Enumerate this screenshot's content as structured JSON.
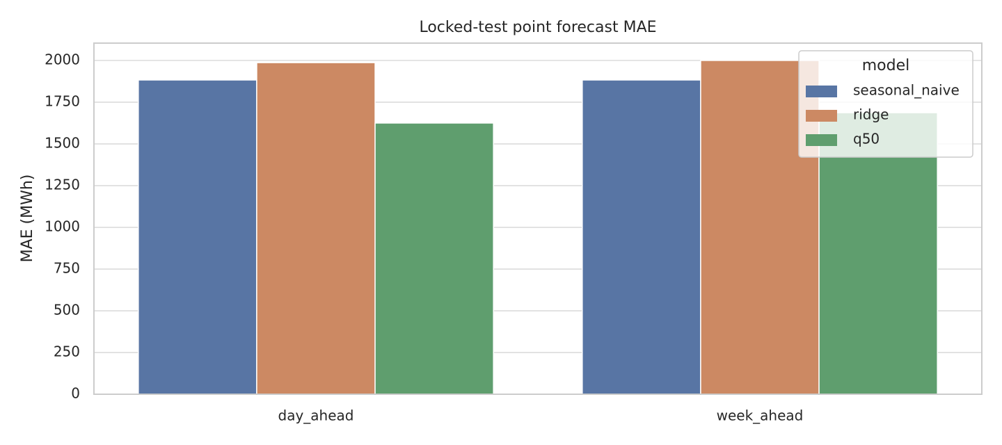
{
  "chart_data": {
    "type": "bar",
    "title": "Locked-test point forecast MAE",
    "y_label": "MAE (MWh)",
    "categories": [
      "day_ahead",
      "week_ahead"
    ],
    "series": [
      {
        "name": "seasonal_naive",
        "color": "#5875a4",
        "values": [
          1883,
          1883
        ]
      },
      {
        "name": "ridge",
        "color": "#cc8963",
        "values": [
          1987,
          2000
        ]
      },
      {
        "name": "q50",
        "color": "#5f9e6e",
        "values": [
          1625,
          1687
        ]
      }
    ],
    "ylim": [
      0,
      2104
    ],
    "yticks": [
      0,
      250,
      500,
      750,
      1000,
      1250,
      1500,
      1750,
      2000
    ],
    "grid": true,
    "legend_title": "model",
    "legend_position": "upper-right"
  }
}
